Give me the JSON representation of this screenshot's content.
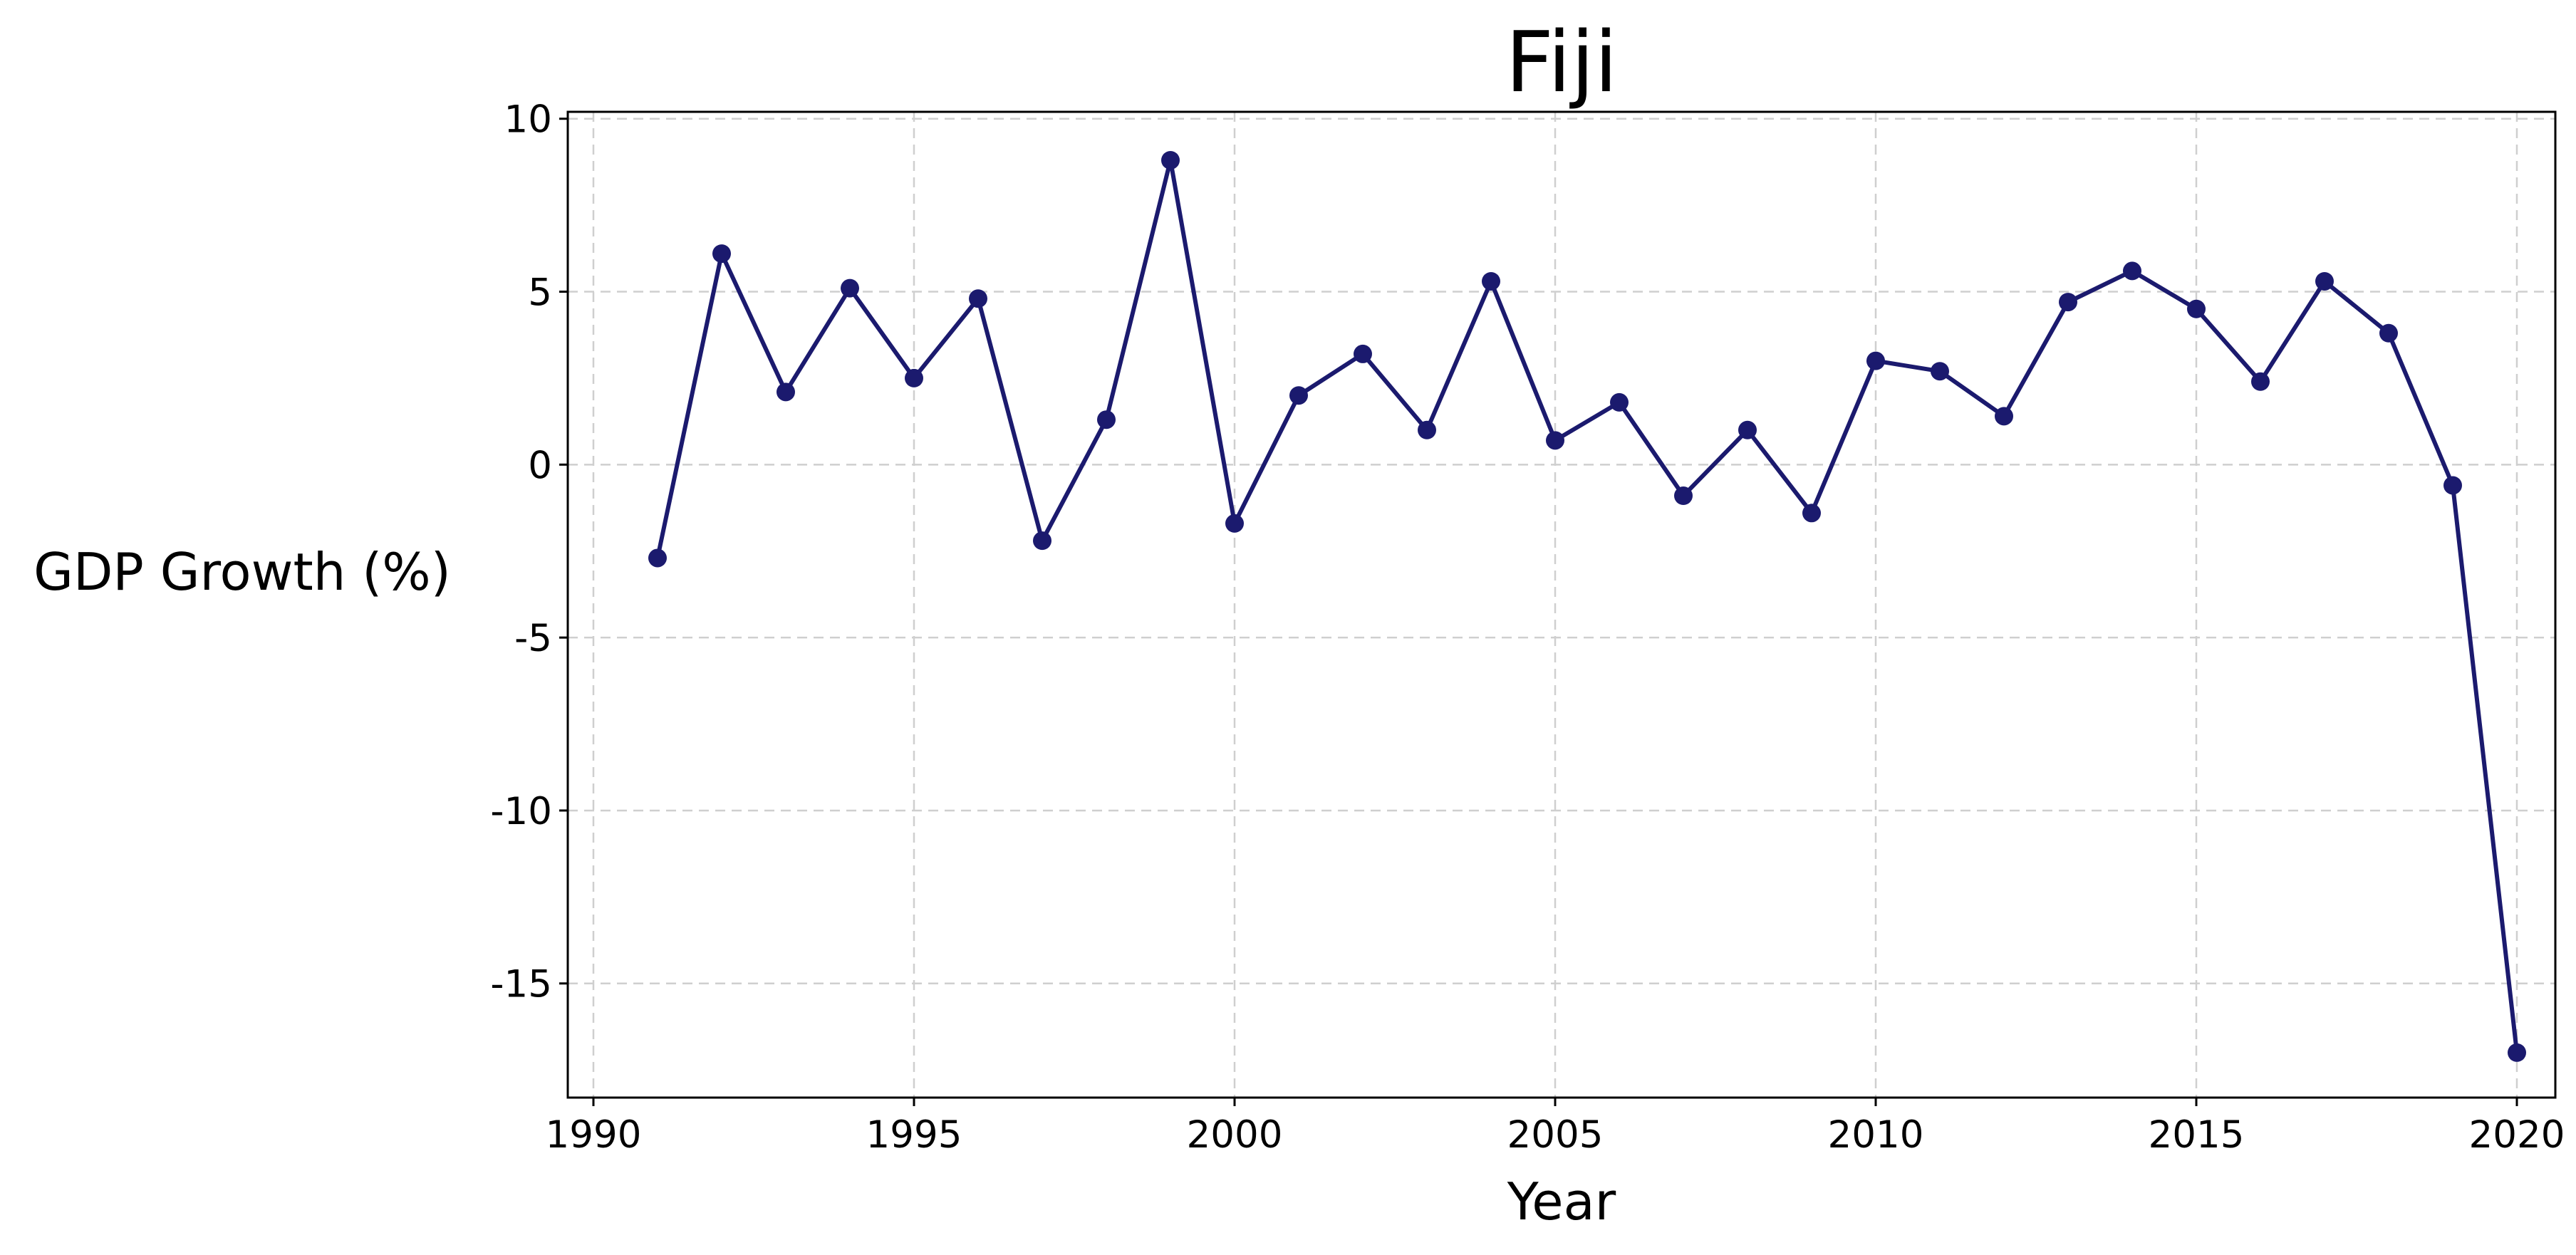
{
  "chart_data": {
    "type": "line",
    "title": "Fiji",
    "xlabel": "Year",
    "ylabel": "GDP Growth (%)",
    "xlim": [
      1989.6,
      2020.6
    ],
    "ylim": [
      -18.3,
      10.2
    ],
    "xticks": [
      1990,
      1995,
      2000,
      2005,
      2010,
      2015,
      2020
    ],
    "yticks": [
      10,
      5,
      0,
      -5,
      -10,
      -15
    ],
    "grid": true,
    "legend": "none",
    "line_color": "#1b1a6e",
    "series": [
      {
        "x": [
          1991,
          1992,
          1993,
          1994,
          1995,
          1996,
          1997,
          1998,
          1999,
          2000,
          2001,
          2002,
          2003,
          2004,
          2005,
          2006,
          2007,
          2008,
          2009,
          2010,
          2011,
          2012,
          2013,
          2014,
          2015,
          2016,
          2017,
          2018,
          2019,
          2020
        ],
        "y": [
          -2.7,
          6.1,
          2.1,
          5.1,
          2.5,
          4.8,
          -2.2,
          1.3,
          8.8,
          -1.7,
          2.0,
          3.2,
          1.0,
          5.3,
          0.7,
          1.8,
          -0.9,
          1.0,
          -1.4,
          3.0,
          2.7,
          1.4,
          4.7,
          5.6,
          4.5,
          2.4,
          5.3,
          3.8,
          -0.6,
          -17.0
        ]
      }
    ]
  }
}
